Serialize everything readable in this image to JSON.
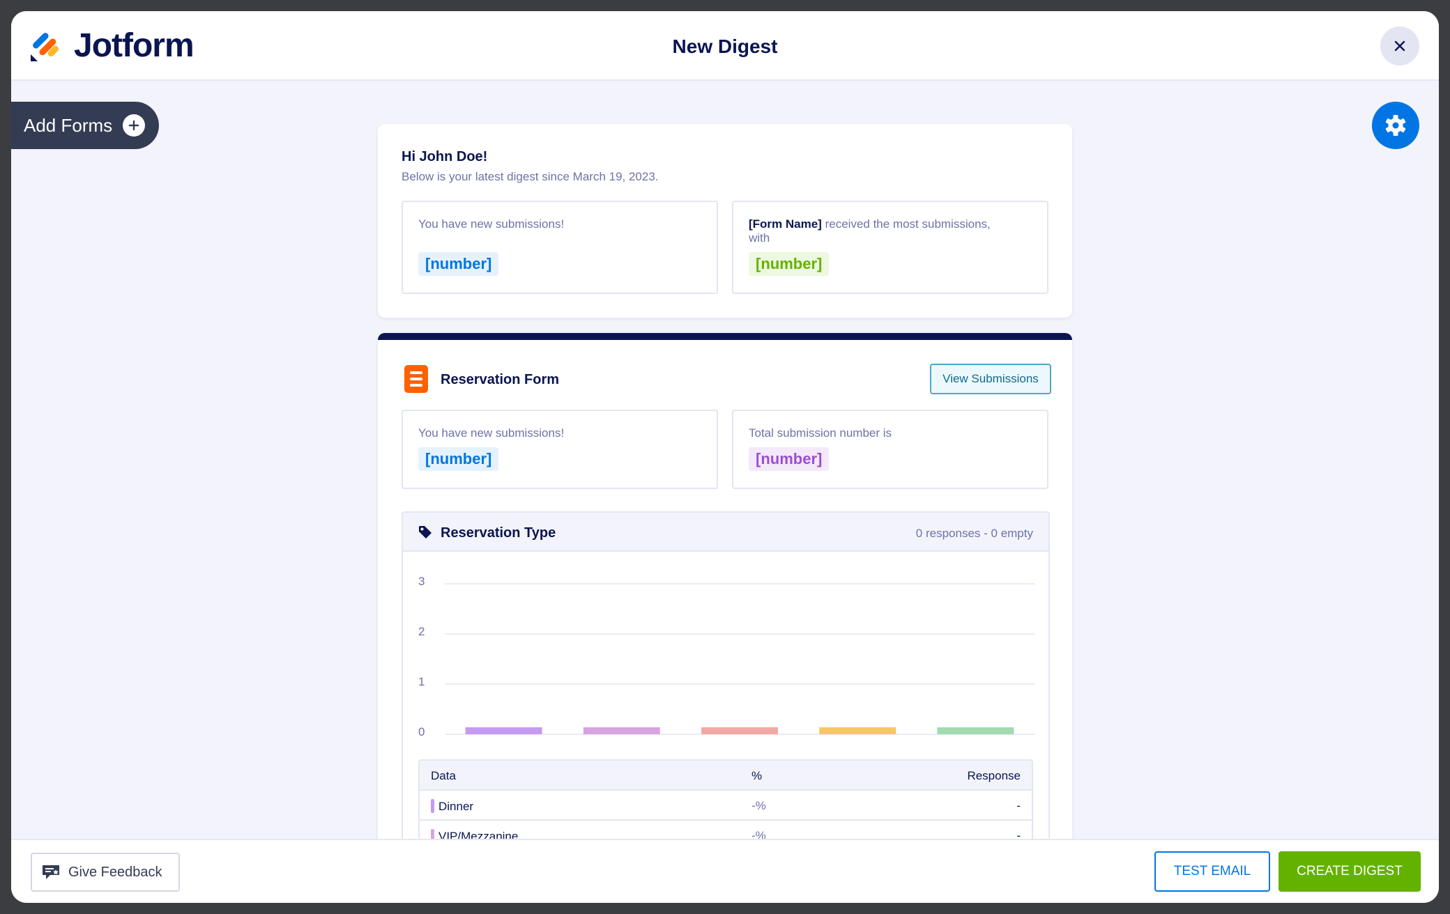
{
  "app": {
    "logo_text": "Jotform",
    "title": "New Digest"
  },
  "sidebar": {
    "add_forms_label": "Add Forms"
  },
  "greeting": {
    "title": "Hi John Doe!",
    "subtitle": "Below is your latest digest since March 19, 2023.",
    "new_submissions_text": "You have new submissions!",
    "new_submissions_value": "[number]",
    "most_form_name": "[Form Name]",
    "most_text": "received the most submissions, with",
    "most_value": "[number]"
  },
  "form": {
    "title": "Reservation Form",
    "view_button": "View Submissions",
    "new_submissions_text": "You have new submissions!",
    "new_submissions_value": "[number]",
    "total_text": "Total submission number is",
    "total_value": "[number]"
  },
  "question": {
    "title": "Reservation Type",
    "meta": "0 responses - 0 empty",
    "table_headers": {
      "data": "Data",
      "pct": "%",
      "response": "Response"
    },
    "rows": [
      {
        "label": "Dinner",
        "pct": "-%",
        "response": "-",
        "color": "#c59af2"
      },
      {
        "label": "VIP/Mezzanine",
        "pct": "-%",
        "response": "-",
        "color": "#d9a3e0"
      }
    ]
  },
  "chart_data": {
    "type": "bar",
    "categories": [
      "",
      "",
      "",
      "",
      ""
    ],
    "values": [
      0,
      0,
      0,
      0,
      0
    ],
    "colors": [
      "#c59af2",
      "#d9a3e0",
      "#f2a9a3",
      "#f7c56a",
      "#a3dbb1"
    ],
    "ylim": [
      0,
      3
    ],
    "yticks": [
      "0",
      "1",
      "2",
      "3"
    ],
    "grid": true
  },
  "footer": {
    "feedback_label": "Give Feedback",
    "test_email_label": "TEST EMAIL",
    "create_digest_label": "CREATE DIGEST"
  },
  "colors": {
    "brand": "#0a1551",
    "accent": "#0075e3",
    "create": "#64b200"
  }
}
